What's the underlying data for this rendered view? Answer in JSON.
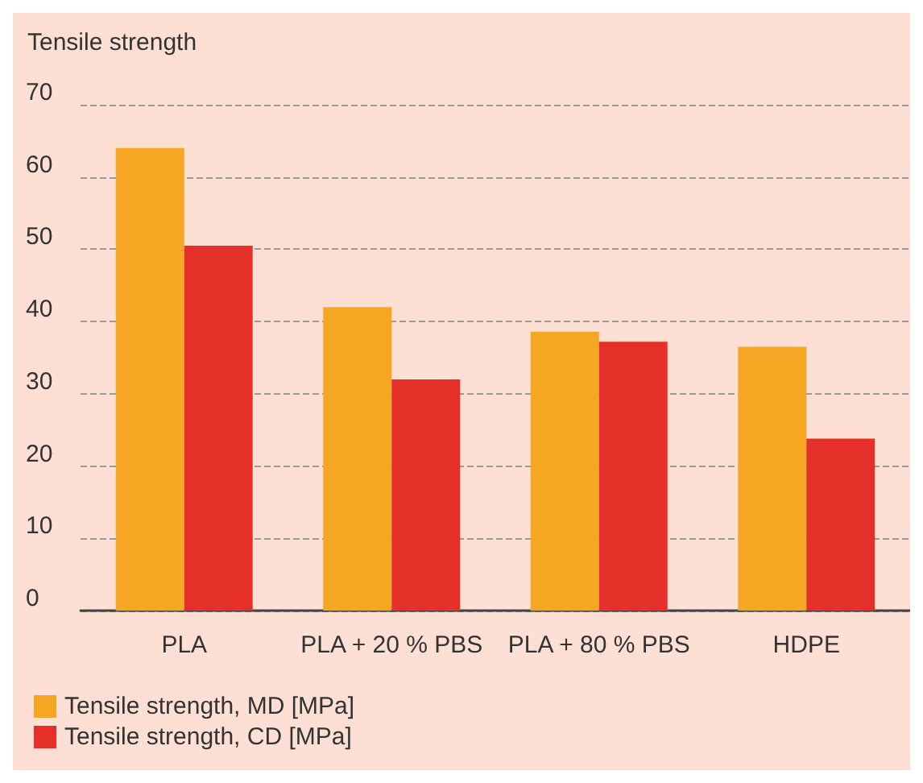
{
  "chart_data": {
    "type": "bar",
    "ylabel": "Tensile strength",
    "categories": [
      "PLA",
      "PLA + 20 % PBS",
      "PLA + 80 % PBS",
      "HDPE"
    ],
    "series": [
      {
        "name": "Tensile strength, MD [MPa]",
        "color": "#f5a623",
        "values": [
          64,
          42,
          38.6,
          36.5
        ]
      },
      {
        "name": "Tensile strength, CD [MPa]",
        "color": "#e5302a",
        "values": [
          50.5,
          32,
          37.2,
          23.8
        ]
      }
    ],
    "ylim": [
      0,
      70
    ],
    "yticks": [
      0,
      10,
      20,
      30,
      40,
      50,
      60,
      70
    ],
    "grid": "y",
    "legend": "bottom left"
  }
}
